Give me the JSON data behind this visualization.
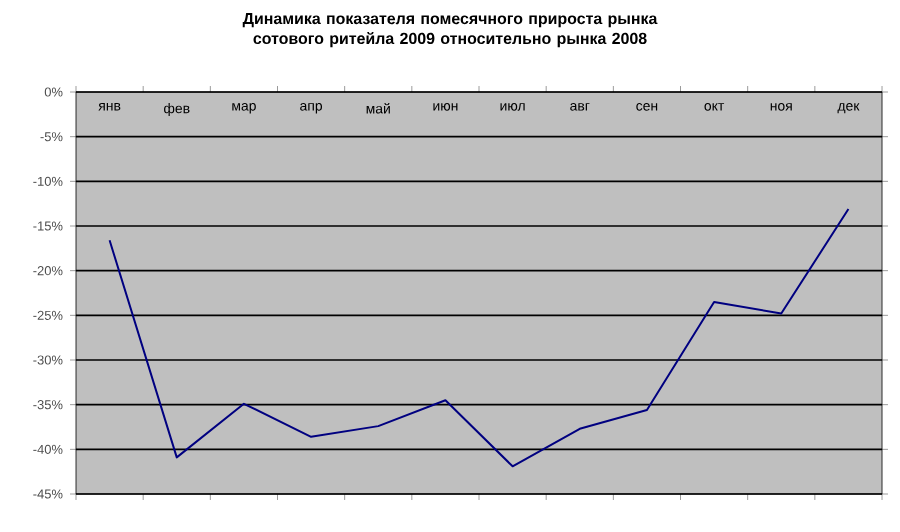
{
  "chart_data": {
    "type": "line",
    "title": "Динамика показателя помесячного прироста рынка сотового ритейла 2009 относительно рынка 2008",
    "categories": [
      "янв",
      "фев",
      "мар",
      "апр",
      "май",
      "июн",
      "июл",
      "авг",
      "сен",
      "окт",
      "ноя",
      "дек"
    ],
    "series": [
      {
        "color": "#000080",
        "values": [
          -16.6,
          -40.9,
          -34.9,
          -38.6,
          -37.4,
          -34.5,
          -41.9,
          -37.7,
          -35.6,
          -23.5,
          -24.8,
          -13.1
        ]
      }
    ],
    "ylim": [
      -45,
      0
    ],
    "yticks": [
      {
        "value": 0,
        "label": "0%"
      },
      {
        "value": -5,
        "label": "-5%"
      },
      {
        "value": -10,
        "label": "-10%"
      },
      {
        "value": -15,
        "label": "-15%"
      },
      {
        "value": -20,
        "label": "-20%"
      },
      {
        "value": -25,
        "label": "-25%"
      },
      {
        "value": -30,
        "label": "-30%"
      },
      {
        "value": -35,
        "label": "-35%"
      },
      {
        "value": -40,
        "label": "-40%"
      },
      {
        "value": -45,
        "label": "-45%"
      }
    ],
    "grid": "y"
  }
}
